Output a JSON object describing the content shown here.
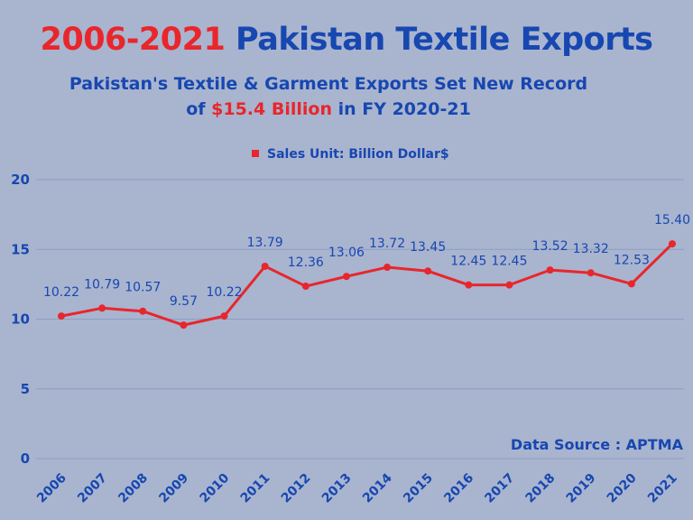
{
  "title": {
    "year_range": "2006-2021",
    "main": "Pakistan Textile Exports"
  },
  "subtitle": {
    "line1": "Pakistan's Textile & Garment Exports Set New Record",
    "line2_prefix": "of ",
    "line2_highlight": "$15.4 Billion",
    "line2_suffix": " in FY 2020-21"
  },
  "source": "Data Source : APTMA",
  "colors": {
    "line": "#e8262b",
    "text_blue": "#1747b0",
    "background": "#a9b4cf",
    "grid": "#8e9dc4"
  },
  "chart_data": {
    "type": "line",
    "title": "2006-2021 Pakistan Textile Exports",
    "xlabel": "",
    "ylabel": "",
    "x": [
      "2006",
      "2007",
      "2008",
      "2009",
      "2010",
      "2011",
      "2012",
      "2013",
      "2014",
      "2015",
      "2016",
      "2017",
      "2018",
      "2019",
      "2020",
      "2021"
    ],
    "series": [
      {
        "name": "Sales Unit: Billion Dollar$",
        "values": [
          10.22,
          10.79,
          10.57,
          9.57,
          10.22,
          13.79,
          12.36,
          13.06,
          13.72,
          13.45,
          12.45,
          12.45,
          13.52,
          13.32,
          12.53,
          15.4
        ],
        "labels": [
          "10.22",
          "10.79",
          "10.57",
          "9.57",
          "10.22",
          "13.79",
          "12.36",
          "13.06",
          "13.72",
          "13.45",
          "12.45",
          "12.45",
          "13.52",
          "13.32",
          "12.53",
          "15.40"
        ]
      }
    ],
    "yticks": [
      "0",
      "5",
      "10",
      "15",
      "20"
    ],
    "ylim": [
      0,
      20
    ],
    "grid": true,
    "legend_position": "top-center"
  }
}
